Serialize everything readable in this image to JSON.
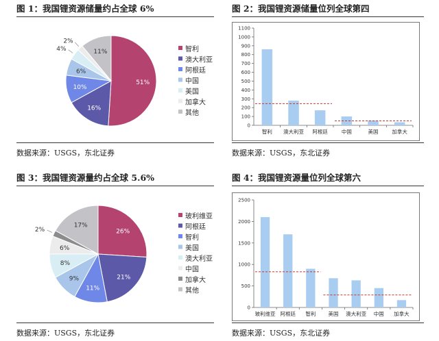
{
  "figures": [
    {
      "title": "图 1：我国锂资源储量约占全球 6%",
      "source": "数据来源：USGS，东北证券"
    },
    {
      "title": "图 2：我国锂资源储量位列全球第四",
      "source": "数据来源：USGS，东北证券"
    },
    {
      "title": "图 3：我国锂资源量约占全球 5.6%",
      "source": "数据来源：USGS，东北证券"
    },
    {
      "title": "图 4：我国锂资源量位列全球第六",
      "source": "数据来源：USGS，东北证券"
    }
  ],
  "colors": {
    "magenta": "#b5436f",
    "navy": "#5c5aa8",
    "blue": "#6f87e6",
    "lightblue": "#a9c6ea",
    "paleblue": "#d9edf5",
    "lightgray": "#ececec",
    "gray": "#8c8c8c",
    "silver": "#c3c3c7",
    "bar": "#a8cdf0",
    "refline": "#c0392b"
  },
  "chart_data": [
    {
      "type": "pie",
      "labels": [
        "智利",
        "澳大利亚",
        "阿根廷",
        "中国",
        "美国",
        "加拿大",
        "其他"
      ],
      "values": [
        51,
        16,
        10,
        6,
        4,
        2,
        11
      ],
      "value_labels": [
        "51%",
        "16%",
        "10%",
        "6%",
        "4%",
        "2%",
        "11%"
      ],
      "color_keys": [
        "magenta",
        "navy",
        "blue",
        "lightblue",
        "paleblue",
        "lightgray",
        "silver"
      ],
      "legend_position": "right"
    },
    {
      "type": "bar",
      "categories": [
        "智利",
        "澳大利亚",
        "阿根廷",
        "中国",
        "美国",
        "加拿大"
      ],
      "values": [
        860,
        280,
        170,
        100,
        55,
        35
      ],
      "ylim": [
        0,
        1100
      ],
      "yticks": [
        "0",
        "100",
        "200",
        "300",
        "400",
        "500",
        "600",
        "700",
        "800",
        "900",
        "1000",
        "1100"
      ],
      "reference_lines": [
        {
          "y": 245,
          "from_category": 0,
          "to_category": 2
        },
        {
          "y": 50,
          "from_category": 3,
          "to_category": 5
        }
      ],
      "grid": false
    },
    {
      "type": "pie",
      "labels": [
        "玻利维亚",
        "阿根廷",
        "智利",
        "美国",
        "澳大利亚",
        "中国",
        "加拿大",
        "其他"
      ],
      "values": [
        26,
        21,
        11,
        9,
        8,
        6,
        2,
        17
      ],
      "value_labels": [
        "26%",
        "21%",
        "11%",
        "9%",
        "8%",
        "6%",
        "2%",
        "17%"
      ],
      "color_keys": [
        "magenta",
        "navy",
        "blue",
        "lightblue",
        "paleblue",
        "lightgray",
        "gray",
        "silver"
      ],
      "legend_position": "right"
    },
    {
      "type": "bar",
      "categories": [
        "玻利维亚",
        "阿根廷",
        "智利",
        "美国",
        "澳大利亚",
        "中国",
        "加拿大"
      ],
      "values": [
        2100,
        1700,
        900,
        680,
        630,
        450,
        170
      ],
      "ylim": [
        0,
        2500
      ],
      "yticks": [
        "0",
        "500",
        "1000",
        "1500",
        "2000",
        "2500"
      ],
      "reference_lines": [
        {
          "y": 830,
          "from_category": 0,
          "to_category": 2
        },
        {
          "y": 290,
          "from_category": 3,
          "to_category": 6
        }
      ],
      "grid": false
    }
  ]
}
